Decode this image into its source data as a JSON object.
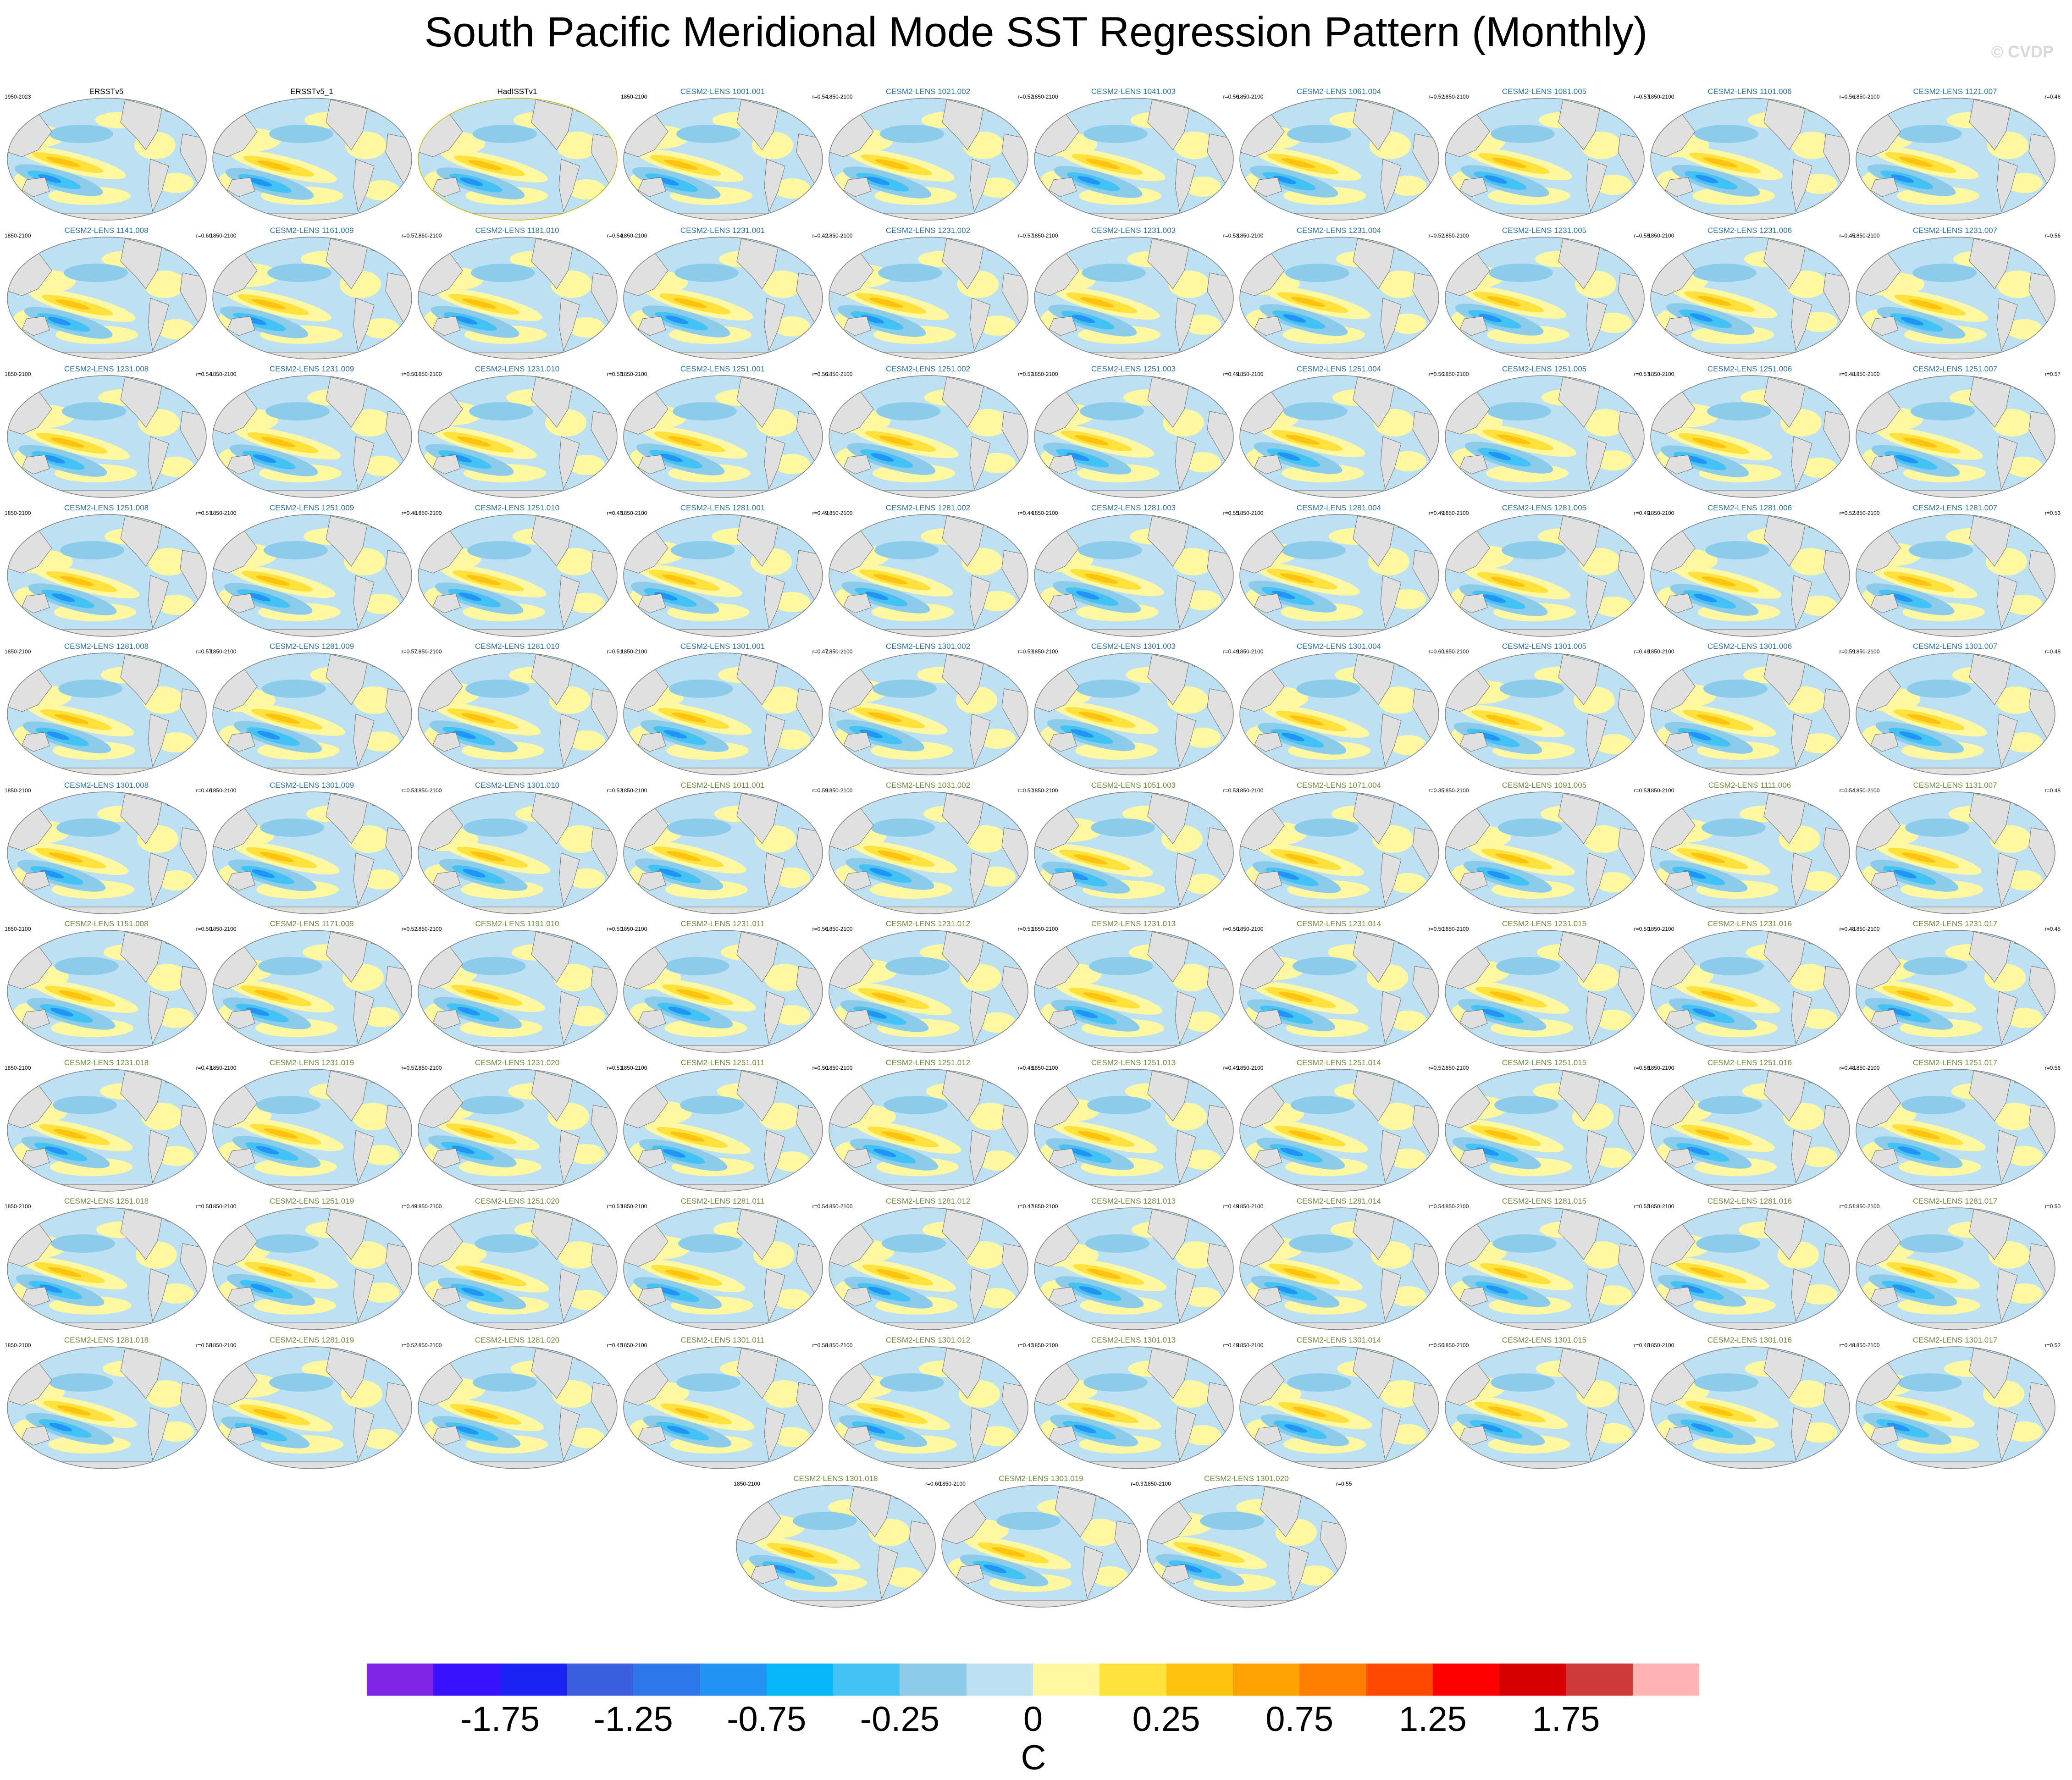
{
  "title": "South Pacific Meridional Mode SST Regression Pattern (Monthly)",
  "watermark": "© CVDP",
  "chart_data": {
    "type": "heatmap",
    "description_kind": "panel grid of global SST regression maps",
    "panels": [
      {
        "name": "ERSSTv5",
        "period": "1950-2023",
        "r": "",
        "group": "obs"
      },
      {
        "name": "ERSSTv5_1",
        "period": "",
        "r": "",
        "group": "obs"
      },
      {
        "name": "HadISSTv1",
        "period": "",
        "r": "",
        "group": "obs"
      },
      {
        "name": "CESM2-LENS 1001.001",
        "period": "1850-2100",
        "r": "r=0.54",
        "group": "c1"
      },
      {
        "name": "CESM2-LENS 1021.002",
        "period": "1850-2100",
        "r": "r=0.52",
        "group": "c1"
      },
      {
        "name": "CESM2-LENS 1041.003",
        "period": "1850-2100",
        "r": "r=0.56",
        "group": "c1"
      },
      {
        "name": "CESM2-LENS 1061.004",
        "period": "1850-2100",
        "r": "r=0.52",
        "group": "c1"
      },
      {
        "name": "CESM2-LENS 1081.005",
        "period": "1850-2100",
        "r": "r=0.57",
        "group": "c1"
      },
      {
        "name": "CESM2-LENS 1101.006",
        "period": "1850-2100",
        "r": "r=0.56",
        "group": "c1"
      },
      {
        "name": "CESM2-LENS 1121.007",
        "period": "1850-2100",
        "r": "r=0.46",
        "group": "c1"
      },
      {
        "name": "CESM2-LENS 1141.008",
        "period": "1850-2100",
        "r": "r=0.60",
        "group": "c1"
      },
      {
        "name": "CESM2-LENS 1161.009",
        "period": "1850-2100",
        "r": "r=0.57",
        "group": "c1"
      },
      {
        "name": "CESM2-LENS 1181.010",
        "period": "1850-2100",
        "r": "r=0.54",
        "group": "c1"
      },
      {
        "name": "CESM2-LENS 1231.001",
        "period": "1850-2100",
        "r": "r=0.42",
        "group": "c1"
      },
      {
        "name": "CESM2-LENS 1231.002",
        "period": "1850-2100",
        "r": "r=0.57",
        "group": "c1"
      },
      {
        "name": "CESM2-LENS 1231.003",
        "period": "1850-2100",
        "r": "r=0.53",
        "group": "c1"
      },
      {
        "name": "CESM2-LENS 1231.004",
        "period": "1850-2100",
        "r": "r=0.52",
        "group": "c1"
      },
      {
        "name": "CESM2-LENS 1231.005",
        "period": "1850-2100",
        "r": "r=0.55",
        "group": "c1"
      },
      {
        "name": "CESM2-LENS 1231.006",
        "period": "1850-2100",
        "r": "r=0.45",
        "group": "c1"
      },
      {
        "name": "CESM2-LENS 1231.007",
        "period": "1850-2100",
        "r": "r=0.56",
        "group": "c1"
      },
      {
        "name": "CESM2-LENS 1231.008",
        "period": "1850-2100",
        "r": "r=0.54",
        "group": "c1"
      },
      {
        "name": "CESM2-LENS 1231.009",
        "period": "1850-2100",
        "r": "r=0.50",
        "group": "c1"
      },
      {
        "name": "CESM2-LENS 1231.010",
        "period": "1850-2100",
        "r": "r=0.56",
        "group": "c1"
      },
      {
        "name": "CESM2-LENS 1251.001",
        "period": "1850-2100",
        "r": "r=0.56",
        "group": "c1"
      },
      {
        "name": "CESM2-LENS 1251.002",
        "period": "1850-2100",
        "r": "r=0.52",
        "group": "c1"
      },
      {
        "name": "CESM2-LENS 1251.003",
        "period": "1850-2100",
        "r": "r=0.49",
        "group": "c1"
      },
      {
        "name": "CESM2-LENS 1251.004",
        "period": "1850-2100",
        "r": "r=0.56",
        "group": "c1"
      },
      {
        "name": "CESM2-LENS 1251.005",
        "period": "1850-2100",
        "r": "r=0.57",
        "group": "c1"
      },
      {
        "name": "CESM2-LENS 1251.006",
        "period": "1850-2100",
        "r": "r=0.48",
        "group": "c1"
      },
      {
        "name": "CESM2-LENS 1251.007",
        "period": "1850-2100",
        "r": "r=0.57",
        "group": "c1"
      },
      {
        "name": "CESM2-LENS 1251.008",
        "period": "1850-2100",
        "r": "r=0.57",
        "group": "c1"
      },
      {
        "name": "CESM2-LENS 1251.009",
        "period": "1850-2100",
        "r": "r=0.48",
        "group": "c1"
      },
      {
        "name": "CESM2-LENS 1251.010",
        "period": "1850-2100",
        "r": "r=0.46",
        "group": "c1"
      },
      {
        "name": "CESM2-LENS 1281.001",
        "period": "1850-2100",
        "r": "r=0.49",
        "group": "c1"
      },
      {
        "name": "CESM2-LENS 1281.002",
        "period": "1850-2100",
        "r": "r=0.44",
        "group": "c1"
      },
      {
        "name": "CESM2-LENS 1281.003",
        "period": "1850-2100",
        "r": "r=0.55",
        "group": "c1"
      },
      {
        "name": "CESM2-LENS 1281.004",
        "period": "1850-2100",
        "r": "r=0.49",
        "group": "c1"
      },
      {
        "name": "CESM2-LENS 1281.005",
        "period": "1850-2100",
        "r": "r=0.49",
        "group": "c1"
      },
      {
        "name": "CESM2-LENS 1281.006",
        "period": "1850-2100",
        "r": "r=0.52",
        "group": "c1"
      },
      {
        "name": "CESM2-LENS 1281.007",
        "period": "1850-2100",
        "r": "r=0.53",
        "group": "c1"
      },
      {
        "name": "CESM2-LENS 1281.008",
        "period": "1850-2100",
        "r": "r=0.57",
        "group": "c1"
      },
      {
        "name": "CESM2-LENS 1281.009",
        "period": "1850-2100",
        "r": "r=0.57",
        "group": "c1"
      },
      {
        "name": "CESM2-LENS 1281.010",
        "period": "1850-2100",
        "r": "r=0.51",
        "group": "c1"
      },
      {
        "name": "CESM2-LENS 1301.001",
        "period": "1850-2100",
        "r": "r=0.47",
        "group": "c1"
      },
      {
        "name": "CESM2-LENS 1301.002",
        "period": "1850-2100",
        "r": "r=0.53",
        "group": "c1"
      },
      {
        "name": "CESM2-LENS 1301.003",
        "period": "1850-2100",
        "r": "r=0.49",
        "group": "c1"
      },
      {
        "name": "CESM2-LENS 1301.004",
        "period": "1850-2100",
        "r": "r=0.60",
        "group": "c1"
      },
      {
        "name": "CESM2-LENS 1301.005",
        "period": "1850-2100",
        "r": "r=0.49",
        "group": "c1"
      },
      {
        "name": "CESM2-LENS 1301.006",
        "period": "1850-2100",
        "r": "r=0.59",
        "group": "c1"
      },
      {
        "name": "CESM2-LENS 1301.007",
        "period": "1850-2100",
        "r": "r=0.48",
        "group": "c1"
      },
      {
        "name": "CESM2-LENS 1301.008",
        "period": "1850-2100",
        "r": "r=0.46",
        "group": "c1"
      },
      {
        "name": "CESM2-LENS 1301.009",
        "period": "1850-2100",
        "r": "r=0.53",
        "group": "c1"
      },
      {
        "name": "CESM2-LENS 1301.010",
        "period": "1850-2100",
        "r": "r=0.53",
        "group": "c1"
      },
      {
        "name": "CESM2-LENS 1011.001",
        "period": "1850-2100",
        "r": "r=0.59",
        "group": "c2"
      },
      {
        "name": "CESM2-LENS 1031.002",
        "period": "1850-2100",
        "r": "r=0.50",
        "group": "c2"
      },
      {
        "name": "CESM2-LENS 1051.003",
        "period": "1850-2100",
        "r": "r=0.53",
        "group": "c2"
      },
      {
        "name": "CESM2-LENS 1071.004",
        "period": "1850-2100",
        "r": "r=0.35",
        "group": "c2"
      },
      {
        "name": "CESM2-LENS 1091.005",
        "period": "1850-2100",
        "r": "r=0.52",
        "group": "c2"
      },
      {
        "name": "CESM2-LENS 1111.006",
        "period": "1850-2100",
        "r": "r=0.54",
        "group": "c2"
      },
      {
        "name": "CESM2-LENS 1131.007",
        "period": "1850-2100",
        "r": "r=0.48",
        "group": "c2"
      },
      {
        "name": "CESM2-LENS 1151.008",
        "period": "1850-2100",
        "r": "r=0.50",
        "group": "c2"
      },
      {
        "name": "CESM2-LENS 1171.009",
        "period": "1850-2100",
        "r": "r=0.52",
        "group": "c2"
      },
      {
        "name": "CESM2-LENS 1191.010",
        "period": "1850-2100",
        "r": "r=0.50",
        "group": "c2"
      },
      {
        "name": "CESM2-LENS 1231.011",
        "period": "1850-2100",
        "r": "r=0.56",
        "group": "c2"
      },
      {
        "name": "CESM2-LENS 1231.012",
        "period": "1850-2100",
        "r": "r=0.53",
        "group": "c2"
      },
      {
        "name": "CESM2-LENS 1231.013",
        "period": "1850-2100",
        "r": "r=0.50",
        "group": "c2"
      },
      {
        "name": "CESM2-LENS 1231.014",
        "period": "1850-2100",
        "r": "r=0.50",
        "group": "c2"
      },
      {
        "name": "CESM2-LENS 1231.015",
        "period": "1850-2100",
        "r": "r=0.50",
        "group": "c2"
      },
      {
        "name": "CESM2-LENS 1231.016",
        "period": "1850-2100",
        "r": "r=0.48",
        "group": "c2"
      },
      {
        "name": "CESM2-LENS 1231.017",
        "period": "1850-2100",
        "r": "r=0.45",
        "group": "c2"
      },
      {
        "name": "CESM2-LENS 1231.018",
        "period": "1850-2100",
        "r": "r=0.47",
        "group": "c2"
      },
      {
        "name": "CESM2-LENS 1231.019",
        "period": "1850-2100",
        "r": "r=0.57",
        "group": "c2"
      },
      {
        "name": "CESM2-LENS 1231.020",
        "period": "1850-2100",
        "r": "r=0.51",
        "group": "c2"
      },
      {
        "name": "CESM2-LENS 1251.011",
        "period": "1850-2100",
        "r": "r=0.50",
        "group": "c2"
      },
      {
        "name": "CESM2-LENS 1251.012",
        "period": "1850-2100",
        "r": "r=0.48",
        "group": "c2"
      },
      {
        "name": "CESM2-LENS 1251.013",
        "period": "1850-2100",
        "r": "r=0.49",
        "group": "c2"
      },
      {
        "name": "CESM2-LENS 1251.014",
        "period": "1850-2100",
        "r": "r=0.57",
        "group": "c2"
      },
      {
        "name": "CESM2-LENS 1251.015",
        "period": "1850-2100",
        "r": "r=0.56",
        "group": "c2"
      },
      {
        "name": "CESM2-LENS 1251.016",
        "period": "1850-2100",
        "r": "r=0.48",
        "group": "c2"
      },
      {
        "name": "CESM2-LENS 1251.017",
        "period": "1850-2100",
        "r": "r=0.56",
        "group": "c2"
      },
      {
        "name": "CESM2-LENS 1251.018",
        "period": "1850-2100",
        "r": "r=0.50",
        "group": "c2"
      },
      {
        "name": "CESM2-LENS 1251.019",
        "period": "1850-2100",
        "r": "r=0.49",
        "group": "c2"
      },
      {
        "name": "CESM2-LENS 1251.020",
        "period": "1850-2100",
        "r": "r=0.51",
        "group": "c2"
      },
      {
        "name": "CESM2-LENS 1281.011",
        "period": "1850-2100",
        "r": "r=0.54",
        "group": "c2"
      },
      {
        "name": "CESM2-LENS 1281.012",
        "period": "1850-2100",
        "r": "r=0.47",
        "group": "c2"
      },
      {
        "name": "CESM2-LENS 1281.013",
        "period": "1850-2100",
        "r": "r=0.49",
        "group": "c2"
      },
      {
        "name": "CESM2-LENS 1281.014",
        "period": "1850-2100",
        "r": "r=0.54",
        "group": "c2"
      },
      {
        "name": "CESM2-LENS 1281.015",
        "period": "1850-2100",
        "r": "r=0.55",
        "group": "c2"
      },
      {
        "name": "CESM2-LENS 1281.016",
        "period": "1850-2100",
        "r": "r=0.51",
        "group": "c2"
      },
      {
        "name": "CESM2-LENS 1281.017",
        "period": "1850-2100",
        "r": "r=0.50",
        "group": "c2"
      },
      {
        "name": "CESM2-LENS 1281.018",
        "period": "1850-2100",
        "r": "r=0.58",
        "group": "c2"
      },
      {
        "name": "CESM2-LENS 1281.019",
        "period": "1850-2100",
        "r": "r=0.52",
        "group": "c2"
      },
      {
        "name": "CESM2-LENS 1281.020",
        "period": "1850-2100",
        "r": "r=0.46",
        "group": "c2"
      },
      {
        "name": "CESM2-LENS 1301.011",
        "period": "1850-2100",
        "r": "r=0.58",
        "group": "c2"
      },
      {
        "name": "CESM2-LENS 1301.012",
        "period": "1850-2100",
        "r": "r=0.46",
        "group": "c2"
      },
      {
        "name": "CESM2-LENS 1301.013",
        "period": "1850-2100",
        "r": "r=0.49",
        "group": "c2"
      },
      {
        "name": "CESM2-LENS 1301.014",
        "period": "1850-2100",
        "r": "r=0.56",
        "group": "c2"
      },
      {
        "name": "CESM2-LENS 1301.015",
        "period": "1850-2100",
        "r": "r=0.48",
        "group": "c2"
      },
      {
        "name": "CESM2-LENS 1301.016",
        "period": "1850-2100",
        "r": "r=0.48",
        "group": "c2"
      },
      {
        "name": "CESM2-LENS 1301.017",
        "period": "1850-2100",
        "r": "r=0.52",
        "group": "c2"
      },
      {
        "name": "CESM2-LENS 1301.018",
        "period": "1850-2100",
        "r": "r=0.60",
        "group": "c2"
      },
      {
        "name": "CESM2-LENS 1301.019",
        "period": "1850-2100",
        "r": "r=0.37",
        "group": "c2"
      },
      {
        "name": "CESM2-LENS 1301.020",
        "period": "1850-2100",
        "r": "r=0.55",
        "group": "c2"
      }
    ],
    "colorbar": {
      "units": "C",
      "levels": [
        -2.0,
        -1.75,
        -1.5,
        -1.25,
        -1.0,
        -0.75,
        -0.5,
        -0.25,
        -0.1,
        0,
        0.1,
        0.25,
        0.5,
        0.75,
        1.0,
        1.25,
        1.5,
        1.75,
        2.0
      ],
      "colors": [
        "#7f25e6",
        "#3b12ff",
        "#1b22f5",
        "#3c5ee0",
        "#2f78ec",
        "#2394f4",
        "#08b6fb",
        "#43c3f5",
        "#8ccbe9",
        "#bde1f2",
        "#fff8a3",
        "#ffe13c",
        "#ffc20e",
        "#ffa100",
        "#ff7d00",
        "#ff4a00",
        "#ff0000",
        "#d80000",
        "#d13a3a",
        "#ffb3b3"
      ],
      "tick_labels": [
        "-1.75",
        "-1.25",
        "-0.75",
        "-0.25",
        "0",
        "0.25",
        "0.75",
        "1.25",
        "1.75"
      ],
      "tick_positions": [
        -1.75,
        -1.25,
        -0.75,
        -0.25,
        0,
        0.25,
        0.75,
        1.25,
        1.75
      ]
    }
  }
}
